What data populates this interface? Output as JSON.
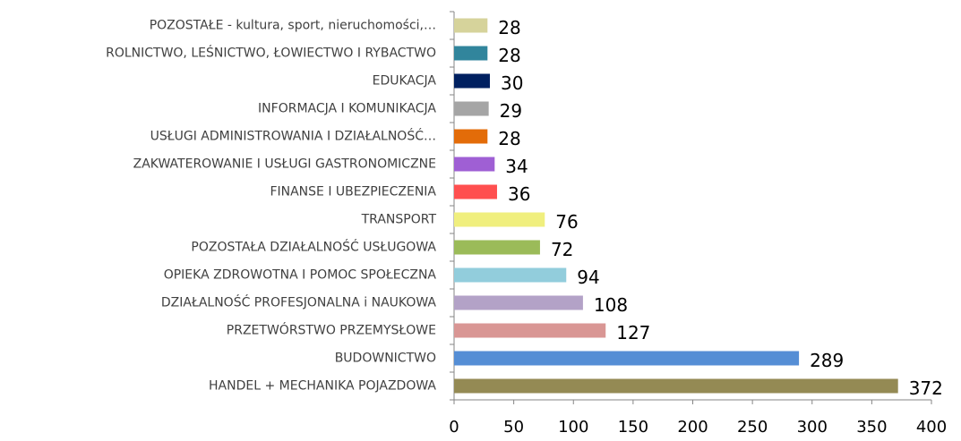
{
  "chart_data": {
    "type": "hbar",
    "categories": [
      "POZOSTAŁE - kultura, sport, nieruchomości,…",
      "ROLNICTWO, LEŚNICTWO, ŁOWIECTWO I RYBACTWO",
      "EDUKACJA",
      "INFORMACJA I KOMUNIKACJA",
      "USŁUGI ADMINISTROWANIA I DZIAŁALNOŚĆ…",
      "ZAKWATEROWANIE I USŁUGI GASTRONOMICZNE",
      "FINANSE I UBEZPIECZENIA",
      "TRANSPORT",
      "POZOSTAŁA DZIAŁALNOŚĆ USŁUGOWA",
      "OPIEKA ZDROWOTNA I POMOC SPOŁECZNA",
      "DZIAŁALNOŚĆ PROFESJONALNA i NAUKOWA",
      "PRZETWÓRSTWO PRZEMYSŁOWE",
      "BUDOWNICTWO",
      "HANDEL + MECHANIKA POJAZDOWA"
    ],
    "values": [
      28,
      28,
      30,
      29,
      28,
      34,
      36,
      76,
      72,
      94,
      108,
      127,
      289,
      372
    ],
    "colors": [
      "#d6d39b",
      "#31859c",
      "#002060",
      "#a5a5a5",
      "#e36c09",
      "#9f5fd4",
      "#ff4f4f",
      "#f0ef7e",
      "#9bbb59",
      "#92cddc",
      "#b3a2c7",
      "#d99694",
      "#558ed5",
      "#948a54"
    ],
    "xlim": [
      0,
      400
    ],
    "xticks": [
      0,
      50,
      100,
      150,
      200,
      250,
      300,
      350,
      400
    ],
    "grid": false
  }
}
